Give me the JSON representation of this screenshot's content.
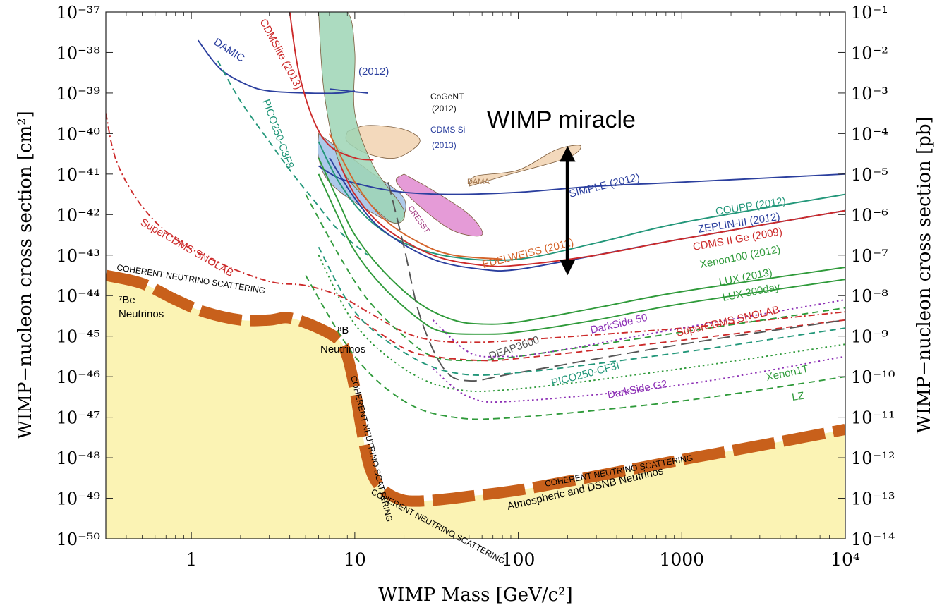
{
  "chart_data": {
    "type": "line",
    "xlabel": "WIMP Mass [GeV/c²]",
    "ylabel_left": "WIMP−nucleon cross section [cm²]",
    "ylabel_right": "WIMP−nucleon cross section [pb]",
    "x_scale": "log",
    "y_scale": "log",
    "xlim": [
      0.3,
      10000
    ],
    "ylim": [
      1e-50,
      1e-37
    ],
    "x_ticks": [
      {
        "value": 1,
        "label": "1"
      },
      {
        "value": 10,
        "label": "10"
      },
      {
        "value": 100,
        "label": "100"
      },
      {
        "value": 1000,
        "label": "1000"
      },
      {
        "value": 10000,
        "label": "10⁴"
      }
    ],
    "y_ticks_left": [
      "10⁻³⁷",
      "10⁻³⁸",
      "10⁻³⁹",
      "10⁻⁴⁰",
      "10⁻⁴¹",
      "10⁻⁴²",
      "10⁻⁴³",
      "10⁻⁴⁴",
      "10⁻⁴⁵",
      "10⁻⁴⁶",
      "10⁻⁴⁷",
      "10⁻⁴⁸",
      "10⁻⁴⁹",
      "10⁻⁵⁰"
    ],
    "y_ticks_right": [
      "10⁻¹",
      "10⁻²",
      "10⁻³",
      "10⁻⁴",
      "10⁻⁵",
      "10⁻⁶",
      "10⁻⁷",
      "10⁻⁸",
      "10⁻⁹",
      "10⁻¹⁰",
      "10⁻¹¹",
      "10⁻¹²",
      "10⁻¹³",
      "10⁻¹⁴"
    ],
    "colors": {
      "neutrino_fill": "#fbf3b4",
      "neutrino_band": "#c8601b",
      "red": "#cc2a2a",
      "blue": "#2b3f9e",
      "green": "#2f9a3a",
      "teal": "#23977a",
      "purple": "#8c2fb5",
      "orange": "#d4642a",
      "gray": "#555555",
      "dama_fill": "#f1d2b0",
      "cresst_fill": "#e08ad0",
      "cdms_si_fill": "#9fc0e6",
      "green_fill": "#9ed5b5"
    },
    "neutrino_floor": [
      [
        0.3,
        -43.5
      ],
      [
        0.5,
        -43.7
      ],
      [
        0.8,
        -44.1
      ],
      [
        1.2,
        -44.4
      ],
      [
        2,
        -44.6
      ],
      [
        3,
        -44.6
      ],
      [
        4,
        -44.55
      ],
      [
        6,
        -44.8
      ],
      [
        8,
        -45.1
      ],
      [
        9,
        -45.5
      ],
      [
        10,
        -46.3
      ],
      [
        11,
        -47.3
      ],
      [
        12.5,
        -48.3
      ],
      [
        15,
        -48.8
      ],
      [
        20,
        -49.05
      ],
      [
        30,
        -49.05
      ],
      [
        50,
        -48.95
      ],
      [
        100,
        -48.8
      ],
      [
        300,
        -48.45
      ],
      [
        1000,
        -48.05
      ],
      [
        3000,
        -47.7
      ],
      [
        10000,
        -47.3
      ]
    ],
    "series": [
      {
        "name": "DAMIC",
        "color": "#2b3f9e",
        "dash": "solid",
        "points": [
          [
            1.1,
            -37.7
          ],
          [
            1.5,
            -38.4
          ],
          [
            2.2,
            -38.8
          ],
          [
            3,
            -38.95
          ],
          [
            5,
            -39.0
          ],
          [
            8,
            -39.0
          ],
          [
            10,
            -38.95
          ]
        ]
      },
      {
        "name": "(2012)",
        "color": "#2b3f9e",
        "dash": "solid",
        "points": [
          [
            7,
            -38.9
          ],
          [
            10,
            -38.97
          ],
          [
            12,
            -39.0
          ]
        ]
      },
      {
        "name": "CDMSlite (2013)",
        "color": "#cc2a2a",
        "dash": "solid",
        "points": [
          [
            4,
            -37
          ],
          [
            4.5,
            -38.4
          ],
          [
            5.5,
            -39.6
          ],
          [
            7,
            -40.3
          ],
          [
            10,
            -40.6
          ],
          [
            13,
            -40.65
          ]
        ]
      },
      {
        "name": "PICO250-C3F8",
        "color": "#23977a",
        "dash": "dashed",
        "points": [
          [
            1.45,
            -38.2
          ],
          [
            2,
            -39.2
          ],
          [
            3,
            -40.2
          ],
          [
            4,
            -40.9
          ],
          [
            5.5,
            -41.6
          ],
          [
            8,
            -42.4
          ],
          [
            12,
            -43.0
          ]
        ]
      },
      {
        "name": "SuperCDMS SNOLAB",
        "color": "#cc2a2a",
        "dash": "dashdot",
        "points": [
          [
            0.3,
            -39.5
          ],
          [
            0.35,
            -40.7
          ],
          [
            0.5,
            -41.8
          ],
          [
            0.8,
            -42.6
          ],
          [
            1.5,
            -43.2
          ],
          [
            3,
            -43.65
          ],
          [
            5,
            -43.75
          ],
          [
            8,
            -44.0
          ],
          [
            12,
            -44.4
          ],
          [
            20,
            -44.9
          ],
          [
            30,
            -45.1
          ],
          [
            50,
            -45.15
          ],
          [
            100,
            -45.1
          ],
          [
            1000,
            -44.8
          ],
          [
            10000,
            -44.4
          ]
        ]
      },
      {
        "name": "SIMPLE (2012)",
        "color": "#2b3f9e",
        "dash": "solid",
        "points": [
          [
            6,
            -40.8
          ],
          [
            8,
            -41.1
          ],
          [
            12,
            -41.3
          ],
          [
            20,
            -41.45
          ],
          [
            40,
            -41.5
          ],
          [
            100,
            -41.45
          ],
          [
            300,
            -41.3
          ],
          [
            1000,
            -41.2
          ],
          [
            10000,
            -41.0
          ]
        ]
      },
      {
        "name": "COUPP (2012)",
        "color": "#23977a",
        "dash": "solid",
        "points": [
          [
            6,
            -40.2
          ],
          [
            8,
            -41.2
          ],
          [
            12,
            -42.1
          ],
          [
            20,
            -42.7
          ],
          [
            40,
            -43.05
          ],
          [
            100,
            -43.1
          ],
          [
            300,
            -42.7
          ],
          [
            1000,
            -42.2
          ],
          [
            10000,
            -41.5
          ]
        ]
      },
      {
        "name": "ZEPLIN-III (2012)",
        "color": "#2b3f9e",
        "dash": "solid",
        "points": [
          [
            7,
            -40.6
          ],
          [
            10,
            -41.6
          ],
          [
            15,
            -42.4
          ],
          [
            30,
            -43.1
          ],
          [
            60,
            -43.35
          ],
          [
            100,
            -43.35
          ],
          [
            300,
            -43.0
          ],
          [
            1000,
            -42.6
          ],
          [
            10000,
            -41.9
          ]
        ]
      },
      {
        "name": "CDMS II Ge (2009)",
        "color": "#cc2a2a",
        "dash": "solid",
        "points": [
          [
            8,
            -40.7
          ],
          [
            10,
            -41.5
          ],
          [
            15,
            -42.3
          ],
          [
            30,
            -43.0
          ],
          [
            60,
            -43.25
          ],
          [
            100,
            -43.25
          ],
          [
            300,
            -43.0
          ],
          [
            1000,
            -42.6
          ],
          [
            10000,
            -41.9
          ]
        ]
      },
      {
        "name": "EDELWEISS (2011)",
        "color": "#d4642a",
        "dash": "solid",
        "points": [
          [
            7,
            -40.0
          ],
          [
            10,
            -41.2
          ],
          [
            15,
            -42.1
          ],
          [
            25,
            -42.7
          ],
          [
            40,
            -43.0
          ],
          [
            80,
            -43.1
          ]
        ]
      },
      {
        "name": "Xenon100 (2012)",
        "color": "#2f9a3a",
        "dash": "solid",
        "points": [
          [
            6,
            -40.6
          ],
          [
            8,
            -41.7
          ],
          [
            10,
            -42.5
          ],
          [
            15,
            -43.4
          ],
          [
            25,
            -44.2
          ],
          [
            40,
            -44.6
          ],
          [
            60,
            -44.7
          ],
          [
            100,
            -44.65
          ],
          [
            300,
            -44.3
          ],
          [
            1000,
            -43.9
          ],
          [
            10000,
            -43.3
          ]
        ]
      },
      {
        "name": "LUX (2013)",
        "color": "#2f9a3a",
        "dash": "solid",
        "points": [
          [
            6,
            -41.0
          ],
          [
            8,
            -42.1
          ],
          [
            10,
            -42.9
          ],
          [
            15,
            -43.8
          ],
          [
            25,
            -44.6
          ],
          [
            35,
            -44.9
          ],
          [
            60,
            -44.95
          ],
          [
            100,
            -44.9
          ],
          [
            300,
            -44.6
          ],
          [
            1000,
            -44.2
          ],
          [
            10000,
            -43.6
          ]
        ]
      },
      {
        "name": "LUX 300day",
        "color": "#2f9a3a",
        "dash": "dashed",
        "points": [
          [
            5,
            -41.5
          ],
          [
            8,
            -43.0
          ],
          [
            12,
            -44.1
          ],
          [
            20,
            -45.0
          ],
          [
            30,
            -45.5
          ],
          [
            50,
            -45.6
          ],
          [
            100,
            -45.5
          ],
          [
            1000,
            -44.9
          ],
          [
            10000,
            -44.3
          ]
        ]
      },
      {
        "name": "DarkSide 50",
        "color": "#8c2fb5",
        "dash": "dotted",
        "points": [
          [
            30,
            -44.6
          ],
          [
            50,
            -45.4
          ],
          [
            80,
            -45.5
          ],
          [
            150,
            -45.4
          ],
          [
            1000,
            -44.8
          ],
          [
            10000,
            -44.1
          ]
        ]
      },
      {
        "name": "SuperCDMS SNOLAB",
        "color": "#cc2a2a",
        "dash": "dashed",
        "points": [
          [
            10,
            -44.5
          ],
          [
            20,
            -45.3
          ],
          [
            30,
            -45.5
          ],
          [
            60,
            -45.6
          ],
          [
            100,
            -45.55
          ],
          [
            1000,
            -45.1
          ],
          [
            10000,
            -44.6
          ]
        ]
      },
      {
        "name": "DEAP3600",
        "color": "#555555",
        "dash": "longdash",
        "points": [
          [
            16,
            -41.2
          ],
          [
            20,
            -42.8
          ],
          [
            25,
            -44.5
          ],
          [
            35,
            -45.8
          ],
          [
            50,
            -46.1
          ],
          [
            100,
            -45.9
          ],
          [
            1000,
            -45.2
          ],
          [
            10000,
            -44.6
          ]
        ]
      },
      {
        "name": "PICO250-CF3I",
        "color": "#23977a",
        "dash": "dashed",
        "points": [
          [
            6,
            -42.8
          ],
          [
            10,
            -44.4
          ],
          [
            20,
            -45.4
          ],
          [
            40,
            -45.9
          ],
          [
            100,
            -45.9
          ],
          [
            1000,
            -45.4
          ],
          [
            10000,
            -44.8
          ]
        ]
      },
      {
        "name": "Xenon1T",
        "color": "#2f9a3a",
        "dash": "dotted",
        "points": [
          [
            6,
            -43
          ],
          [
            10,
            -44.7
          ],
          [
            20,
            -45.8
          ],
          [
            40,
            -46.3
          ],
          [
            100,
            -46.3
          ],
          [
            1000,
            -45.8
          ],
          [
            10000,
            -45.2
          ]
        ]
      },
      {
        "name": "DarkSide G2",
        "color": "#8c2fb5",
        "dash": "dotted",
        "points": [
          [
            30,
            -45.8
          ],
          [
            50,
            -46.5
          ],
          [
            100,
            -46.6
          ],
          [
            1000,
            -46.2
          ],
          [
            10000,
            -45.5
          ]
        ]
      },
      {
        "name": "LZ",
        "color": "#2f9a3a",
        "dash": "dashed",
        "points": [
          [
            5,
            -43.5
          ],
          [
            10,
            -45.5
          ],
          [
            20,
            -46.6
          ],
          [
            40,
            -47.0
          ],
          [
            100,
            -47.0
          ],
          [
            1000,
            -46.6
          ],
          [
            10000,
            -46.0
          ]
        ]
      }
    ],
    "regions": [
      {
        "name": "DAMA",
        "color": "#f1d2b0",
        "points": [
          [
            9,
            -39.95
          ],
          [
            12,
            -39.8
          ],
          [
            20,
            -39.9
          ],
          [
            25,
            -40.2
          ],
          [
            18,
            -40.6
          ],
          [
            12,
            -40.5
          ],
          [
            9,
            -40.2
          ]
        ]
      },
      {
        "name": "DAMA",
        "color": "#f1d2b0",
        "points": [
          [
            50,
            -41.3
          ],
          [
            90,
            -41.0
          ],
          [
            200,
            -40.6
          ],
          [
            240,
            -40.3
          ],
          [
            170,
            -40.4
          ],
          [
            100,
            -40.9
          ],
          [
            55,
            -41.05
          ]
        ]
      },
      {
        "name": "CRESST",
        "color": "#e08ad0",
        "points": [
          [
            20,
            -41.0
          ],
          [
            30,
            -41.4
          ],
          [
            50,
            -42.0
          ],
          [
            60,
            -42.5
          ],
          [
            40,
            -42.4
          ],
          [
            25,
            -41.8
          ],
          [
            18,
            -41.2
          ]
        ]
      },
      {
        "name": "CDMS Si",
        "color": "#9fc0e6",
        "points": [
          [
            6,
            -40.0
          ],
          [
            7,
            -40.2
          ],
          [
            12,
            -40.9
          ],
          [
            20,
            -41.6
          ],
          [
            18,
            -42.2
          ],
          [
            11,
            -41.8
          ],
          [
            7,
            -41.2
          ],
          [
            6,
            -40.6
          ]
        ]
      },
      {
        "name": "CoGeNT",
        "color": "#9ed5b5",
        "points": [
          [
            6,
            -37.0
          ],
          [
            9,
            -37.0
          ],
          [
            10,
            -38.0
          ],
          [
            10,
            -39.5
          ],
          [
            13,
            -40.8
          ],
          [
            20,
            -41.9
          ],
          [
            17,
            -42.2
          ],
          [
            11,
            -41.5
          ],
          [
            8,
            -40.7
          ],
          [
            6.5,
            -39.0
          ]
        ]
      }
    ],
    "annotations": [
      {
        "text": "WIMP miracle"
      },
      {
        "text": "CoGeNT"
      },
      {
        "text": "(2012)"
      },
      {
        "text": "CDMS Si"
      },
      {
        "text": "(2013)"
      },
      {
        "text": "DAMA"
      },
      {
        "text": "CRESST"
      },
      {
        "text": "⁷Be"
      },
      {
        "text": "Neutrinos"
      },
      {
        "text": "⁸B"
      },
      {
        "text": "Neutrinos"
      },
      {
        "text": "Atmospheric and DSNB Neutrinos"
      },
      {
        "text": "COHERENT NEUTRINO SCATTERING"
      },
      {
        "text": "COHERENT NEUTRINO SCATTERING"
      },
      {
        "text": "COHERENT NEUTRINO SCATTERING"
      },
      {
        "text": "COHERENT NEUTRINO SCATTERING"
      }
    ],
    "miracle_arrow": {
      "x": 200,
      "y_range": [
        -43.3,
        -40.5
      ]
    }
  }
}
